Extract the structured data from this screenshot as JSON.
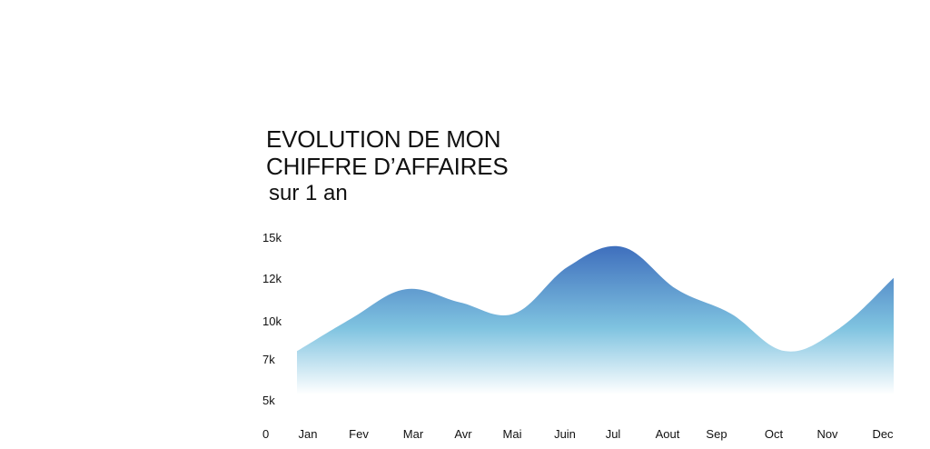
{
  "header": {
    "title_line1": "EVOLUTION DE MON",
    "title_line2": "CHIFFRE D’AFFAIRES",
    "subtitle": "sur 1 an"
  },
  "colors": {
    "area_top": "#3f6fbd",
    "area_mid": "#7fc3e0",
    "area_bottom": "#ffffff",
    "text": "#111111"
  },
  "chart_data": {
    "type": "area",
    "title": "EVOLUTION DE MON CHIFFRE D’AFFAIRES",
    "subtitle": "sur 1 an",
    "categories": [
      "Jan",
      "Fev",
      "Mar",
      "Avr",
      "Mai",
      "Juin",
      "Jul",
      "Aout",
      "Sep",
      "Oct",
      "Nov",
      "Dec"
    ],
    "y_tick_labels": [
      "0",
      "5k",
      "7k",
      "10k",
      "12k",
      "15k"
    ],
    "series": [
      {
        "values": [
          8000,
          10000,
          11800,
          11000,
          10300,
          13200,
          14400,
          11800,
          10300,
          8000,
          9400,
          12500
        ]
      }
    ],
    "grid": false,
    "legend": "none"
  }
}
